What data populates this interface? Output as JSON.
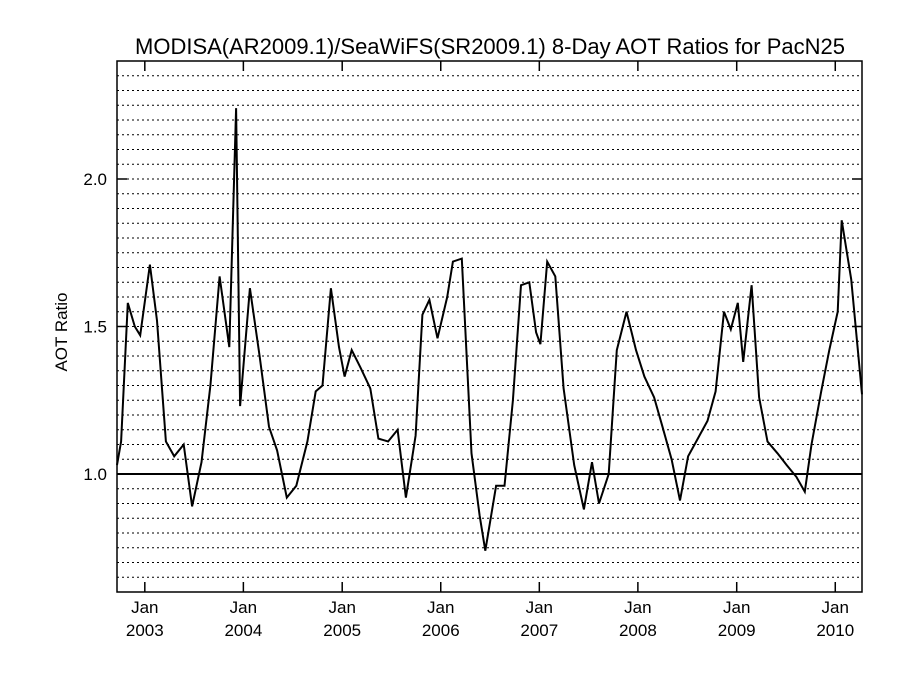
{
  "chart_data": {
    "type": "line",
    "title": "MODISA(AR2009.1)/SeaWiFS(SR2009.1) 8-Day AOT Ratios for PacN25",
    "xlabel": "",
    "ylabel": "AOT Ratio",
    "xlim": [
      "2002-09-20",
      "2010-04-10"
    ],
    "ylim": [
      0.6,
      2.4
    ],
    "yticks": [
      1.0,
      1.5,
      2.0
    ],
    "ytick_labels": [
      "1.0",
      "1.5",
      "2.0"
    ],
    "xticks": [
      {
        "date": "2003-01-01",
        "month": "Jan",
        "year": "2003"
      },
      {
        "date": "2004-01-01",
        "month": "Jan",
        "year": "2004"
      },
      {
        "date": "2005-01-01",
        "month": "Jan",
        "year": "2005"
      },
      {
        "date": "2006-01-01",
        "month": "Jan",
        "year": "2006"
      },
      {
        "date": "2007-01-01",
        "month": "Jan",
        "year": "2007"
      },
      {
        "date": "2008-01-01",
        "month": "Jan",
        "year": "2008"
      },
      {
        "date": "2009-01-01",
        "month": "Jan",
        "year": "2009"
      },
      {
        "date": "2010-01-01",
        "month": "Jan",
        "year": "2010"
      }
    ],
    "grid": "horizontal dotted",
    "reference_line": 1.0,
    "series": [
      {
        "color": "#000000",
        "points": [
          [
            "2002-09-20",
            1.03
          ],
          [
            "2002-10-05",
            1.11
          ],
          [
            "2002-10-30",
            1.58
          ],
          [
            "2002-11-25",
            1.5
          ],
          [
            "2002-12-15",
            1.47
          ],
          [
            "2003-01-20",
            1.71
          ],
          [
            "2003-02-15",
            1.52
          ],
          [
            "2003-03-20",
            1.11
          ],
          [
            "2003-04-20",
            1.06
          ],
          [
            "2003-05-25",
            1.1
          ],
          [
            "2003-06-25",
            0.89
          ],
          [
            "2003-07-30",
            1.04
          ],
          [
            "2003-09-01",
            1.3
          ],
          [
            "2003-10-05",
            1.67
          ],
          [
            "2003-11-10",
            1.43
          ],
          [
            "2003-12-05",
            2.24
          ],
          [
            "2003-12-20",
            1.23
          ],
          [
            "2004-01-25",
            1.63
          ],
          [
            "2004-03-01",
            1.4
          ],
          [
            "2004-04-05",
            1.16
          ],
          [
            "2004-05-05",
            1.08
          ],
          [
            "2004-06-10",
            0.92
          ],
          [
            "2004-07-15",
            0.96
          ],
          [
            "2004-08-25",
            1.11
          ],
          [
            "2004-09-25",
            1.28
          ],
          [
            "2004-10-20",
            1.3
          ],
          [
            "2004-11-20",
            1.63
          ],
          [
            "2004-12-20",
            1.43
          ],
          [
            "2005-01-10",
            1.33
          ],
          [
            "2005-02-05",
            1.42
          ],
          [
            "2005-03-10",
            1.36
          ],
          [
            "2005-04-15",
            1.29
          ],
          [
            "2005-05-15",
            1.12
          ],
          [
            "2005-06-20",
            1.11
          ],
          [
            "2005-07-25",
            1.15
          ],
          [
            "2005-08-25",
            0.92
          ],
          [
            "2005-09-30",
            1.13
          ],
          [
            "2005-10-25",
            1.54
          ],
          [
            "2005-11-20",
            1.59
          ],
          [
            "2005-12-20",
            1.46
          ],
          [
            "2006-01-25",
            1.6
          ],
          [
            "2006-02-15",
            1.72
          ],
          [
            "2006-03-20",
            1.73
          ],
          [
            "2006-04-25",
            1.07
          ],
          [
            "2006-05-25",
            0.86
          ],
          [
            "2006-06-15",
            0.74
          ],
          [
            "2006-07-25",
            0.96
          ],
          [
            "2006-08-25",
            0.96
          ],
          [
            "2006-09-25",
            1.25
          ],
          [
            "2006-10-25",
            1.64
          ],
          [
            "2006-11-25",
            1.65
          ],
          [
            "2006-12-20",
            1.48
          ],
          [
            "2007-01-05",
            1.44
          ],
          [
            "2007-01-30",
            1.72
          ],
          [
            "2007-03-01",
            1.67
          ],
          [
            "2007-04-01",
            1.29
          ],
          [
            "2007-05-10",
            1.03
          ],
          [
            "2007-06-15",
            0.88
          ],
          [
            "2007-07-15",
            1.04
          ],
          [
            "2007-08-10",
            0.9
          ],
          [
            "2007-09-15",
            1.0
          ],
          [
            "2007-10-15",
            1.42
          ],
          [
            "2007-11-20",
            1.55
          ],
          [
            "2007-12-25",
            1.42
          ],
          [
            "2008-01-25",
            1.33
          ],
          [
            "2008-03-01",
            1.26
          ],
          [
            "2008-04-01",
            1.16
          ],
          [
            "2008-05-05",
            1.05
          ],
          [
            "2008-06-05",
            0.91
          ],
          [
            "2008-07-05",
            1.06
          ],
          [
            "2008-08-10",
            1.12
          ],
          [
            "2008-09-15",
            1.18
          ],
          [
            "2008-10-15",
            1.28
          ],
          [
            "2008-11-15",
            1.55
          ],
          [
            "2008-12-10",
            1.49
          ],
          [
            "2009-01-05",
            1.58
          ],
          [
            "2009-01-25",
            1.38
          ],
          [
            "2009-02-25",
            1.64
          ],
          [
            "2009-03-25",
            1.26
          ],
          [
            "2009-04-25",
            1.11
          ],
          [
            "2009-06-01",
            1.07
          ],
          [
            "2009-07-05",
            1.03
          ],
          [
            "2009-08-10",
            0.99
          ],
          [
            "2009-09-10",
            0.94
          ],
          [
            "2009-10-05",
            1.1
          ],
          [
            "2009-11-10",
            1.28
          ],
          [
            "2009-12-10",
            1.42
          ],
          [
            "2010-01-10",
            1.55
          ],
          [
            "2010-01-25",
            1.86
          ],
          [
            "2010-03-01",
            1.66
          ],
          [
            "2010-04-10",
            1.27
          ]
        ]
      }
    ]
  }
}
